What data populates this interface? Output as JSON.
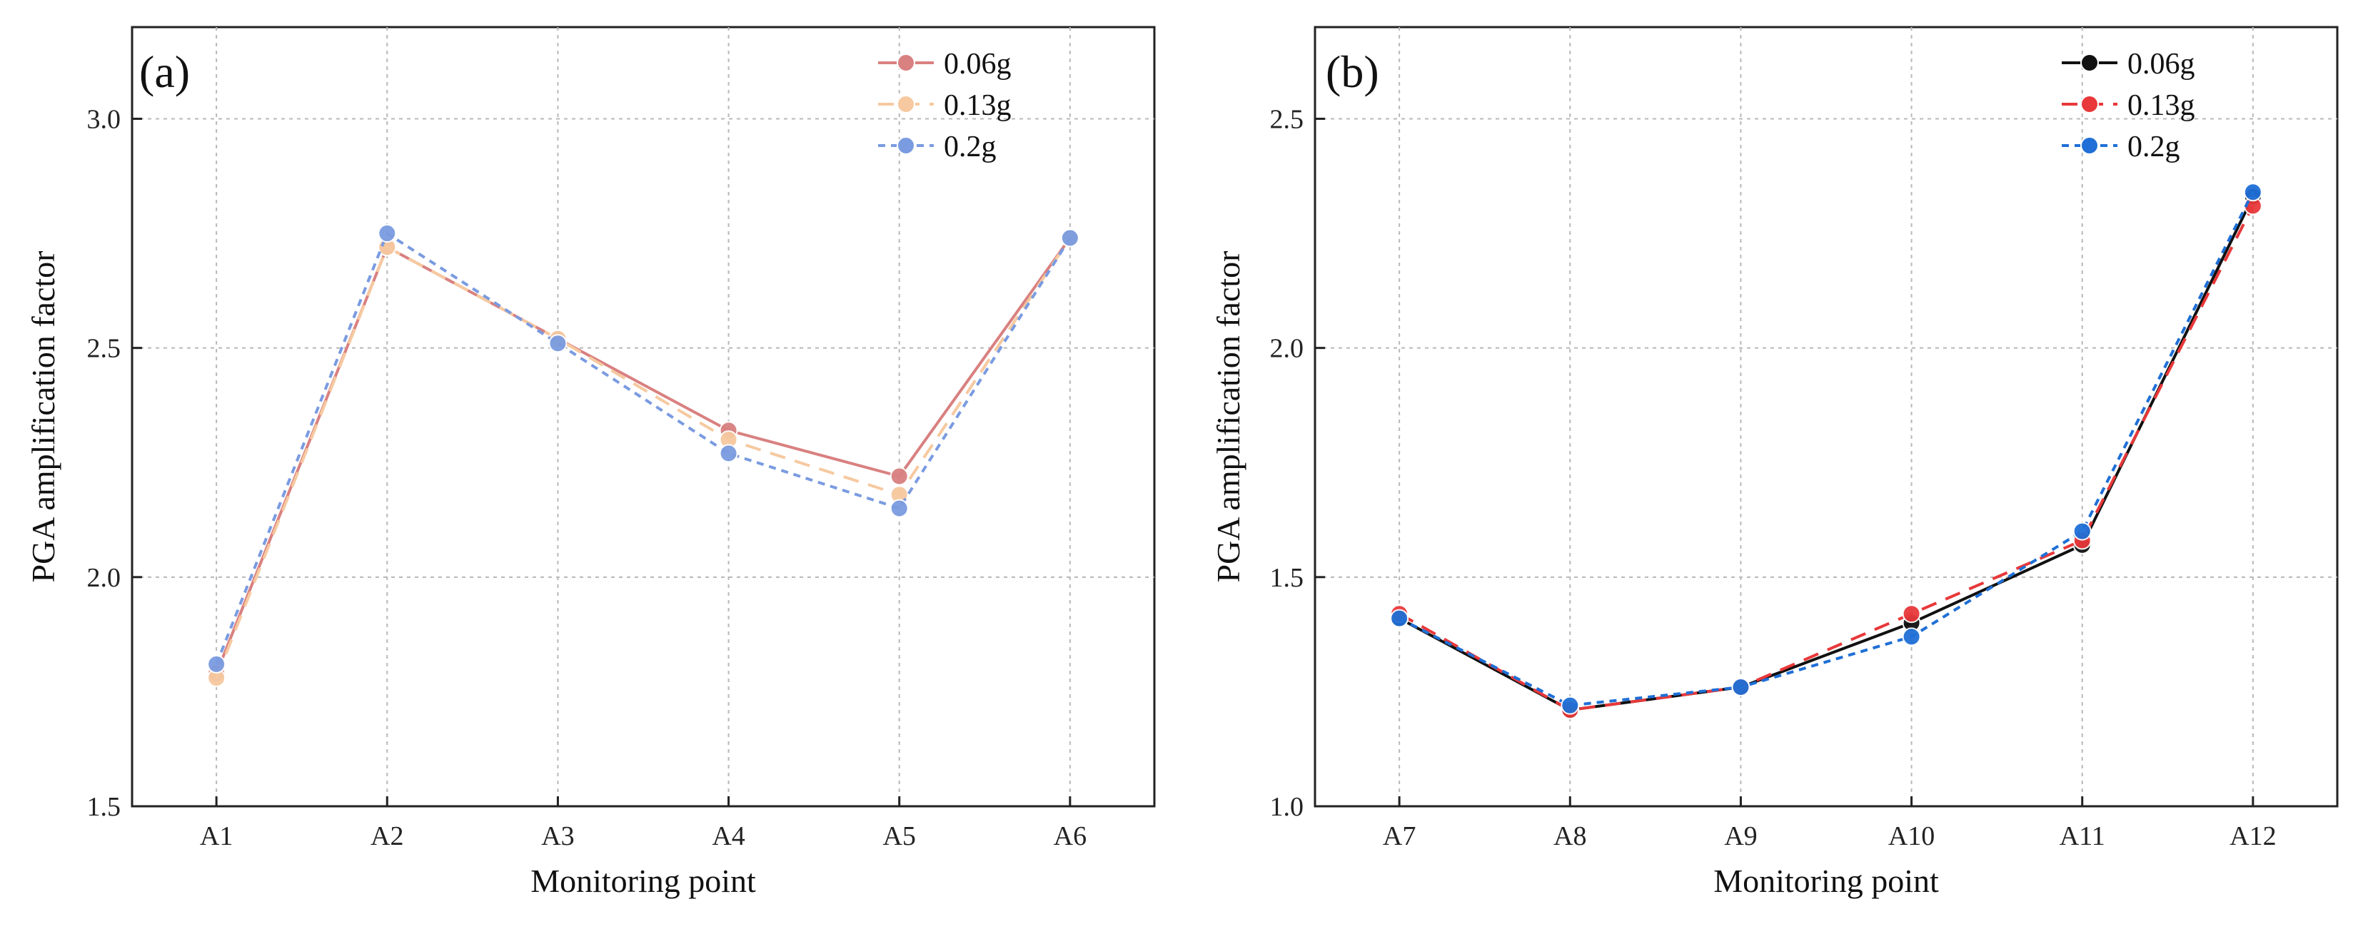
{
  "chart_data": [
    {
      "type": "line",
      "panel_label": "(a)",
      "xlabel": "Monitoring point",
      "ylabel": "PGA amplification factor",
      "categories": [
        "A1",
        "A2",
        "A3",
        "A4",
        "A5",
        "A6"
      ],
      "ylim": [
        1.5,
        3.2
      ],
      "yticks": [
        "1.5",
        "2.0",
        "2.5",
        "3.0"
      ],
      "grid": true,
      "legend_position": "top-right",
      "series": [
        {
          "name": "0.06g",
          "color": "#d98080",
          "dash": "solid",
          "values": [
            1.79,
            2.72,
            2.52,
            2.32,
            2.22,
            2.74
          ]
        },
        {
          "name": "0.13g",
          "color": "#f6c9a0",
          "dash": "long-dash",
          "values": [
            1.78,
            2.72,
            2.52,
            2.3,
            2.18,
            2.74
          ]
        },
        {
          "name": "0.2g",
          "color": "#7a9be0",
          "dash": "short-dash",
          "values": [
            1.81,
            2.75,
            2.51,
            2.27,
            2.15,
            2.74
          ]
        }
      ]
    },
    {
      "type": "line",
      "panel_label": "(b)",
      "xlabel": "Monitoring point",
      "ylabel": "PGA amplification factor",
      "categories": [
        "A7",
        "A8",
        "A9",
        "A10",
        "A11",
        "A12"
      ],
      "ylim": [
        1.0,
        2.7
      ],
      "yticks": [
        "1.0",
        "1.5",
        "2.0",
        "2.5"
      ],
      "grid": true,
      "legend_position": "top-right",
      "series": [
        {
          "name": "0.06g",
          "color": "#111111",
          "dash": "solid",
          "values": [
            1.41,
            1.21,
            1.26,
            1.4,
            1.57,
            2.33
          ]
        },
        {
          "name": "0.13g",
          "color": "#e8383a",
          "dash": "long-dash",
          "values": [
            1.42,
            1.21,
            1.26,
            1.42,
            1.58,
            2.31
          ]
        },
        {
          "name": "0.2g",
          "color": "#1f6fd6",
          "dash": "short-dash",
          "values": [
            1.41,
            1.22,
            1.26,
            1.37,
            1.6,
            2.34
          ]
        }
      ]
    }
  ]
}
